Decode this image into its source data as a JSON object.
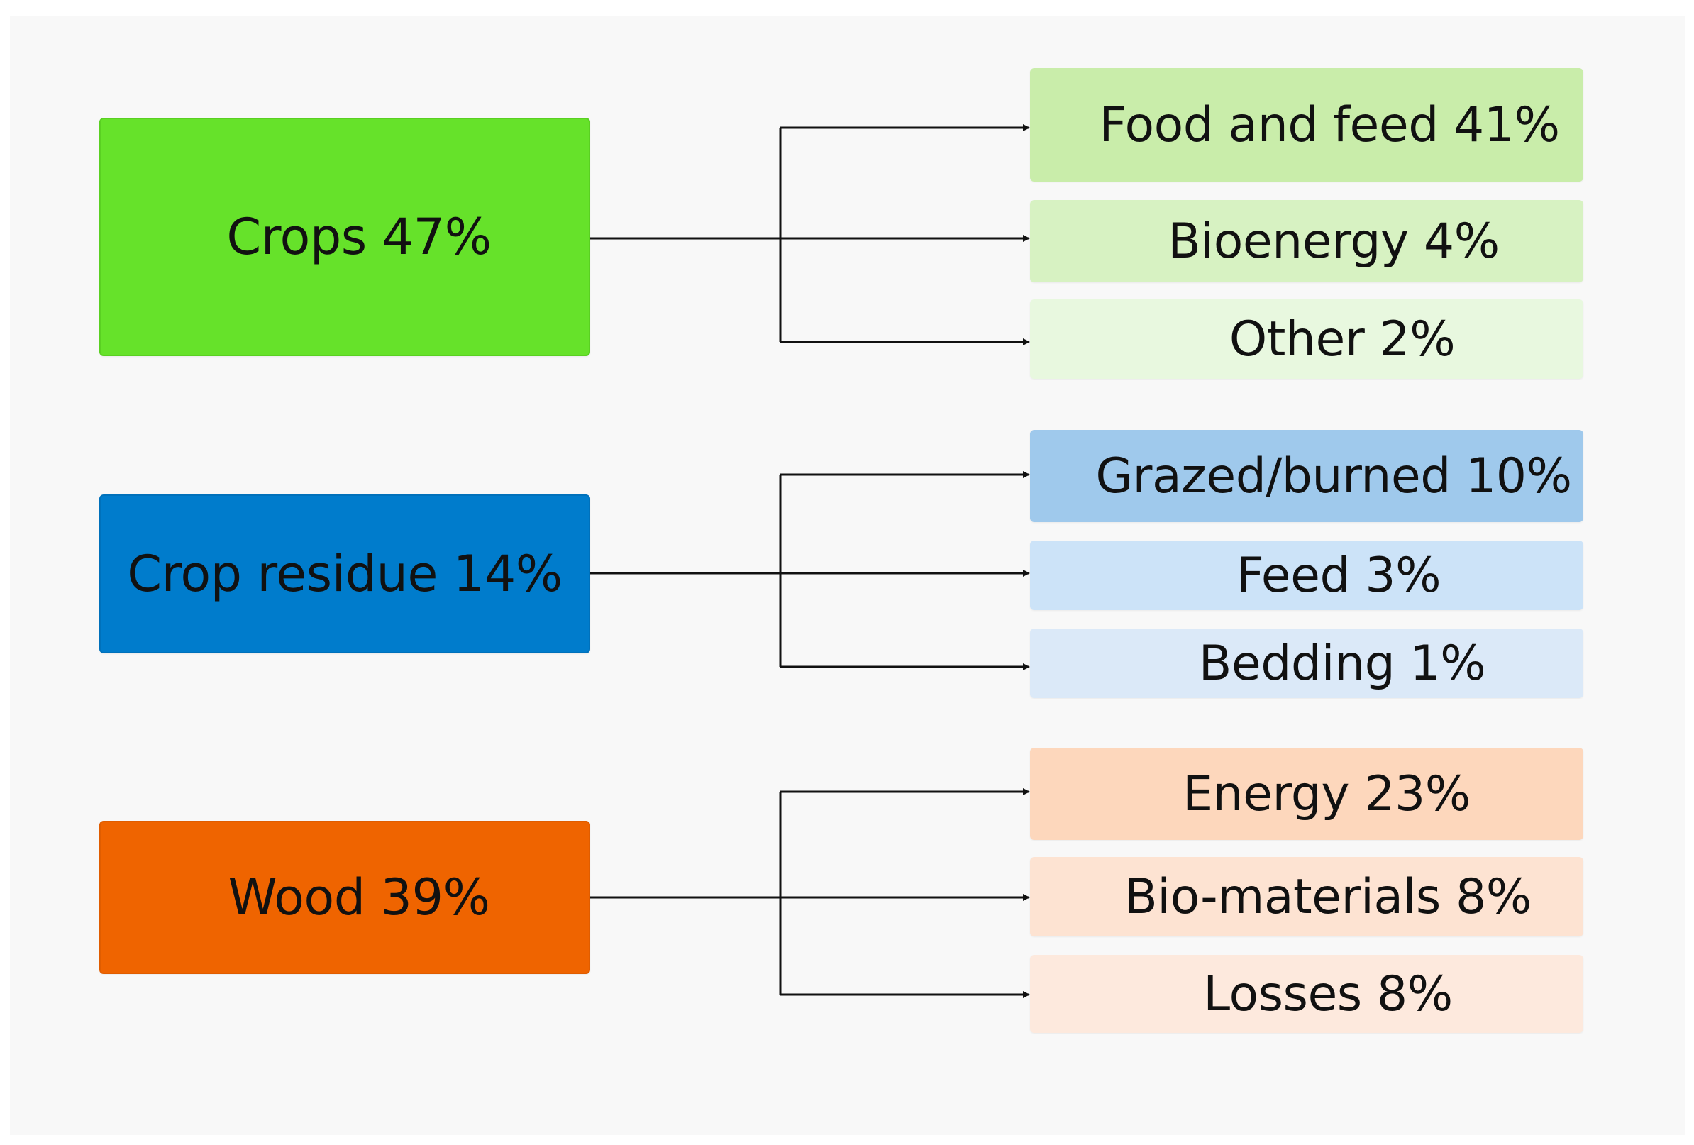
{
  "colors": {
    "line": "#111111",
    "crops": "#66e22a",
    "crops_out_1": "#c9edaa",
    "crops_out_2": "#d7f2c2",
    "crops_out_3": "#e8f8df",
    "residue": "#007ccc",
    "residue_out_1": "#9fc9ec",
    "residue_out_2": "#cce3f8",
    "residue_out_3": "#dbe9f8",
    "wood": "#ef6400",
    "wood_out_1": "#fdd7bc",
    "wood_out_2": "#fde3d2",
    "wood_out_3": "#fde9dd"
  },
  "sources": [
    {
      "label": "Crops 47%",
      "percent": 47,
      "outputs": [
        {
          "label": "Food and feed 41%",
          "percent": 41
        },
        {
          "label": "Bioenergy 4%",
          "percent": 4
        },
        {
          "label": "Other 2%",
          "percent": 2
        }
      ]
    },
    {
      "label": "Crop residue 14%",
      "percent": 14,
      "outputs": [
        {
          "label": "Grazed/burned 10%",
          "percent": 10
        },
        {
          "label": "Feed 3%",
          "percent": 3
        },
        {
          "label": "Bedding 1%",
          "percent": 1
        }
      ]
    },
    {
      "label": "Wood 39%",
      "percent": 39,
      "outputs": [
        {
          "label": "Energy 23%",
          "percent": 23
        },
        {
          "label": "Bio-materials 8%",
          "percent": 8
        },
        {
          "label": "Losses 8%",
          "percent": 8
        }
      ]
    }
  ]
}
